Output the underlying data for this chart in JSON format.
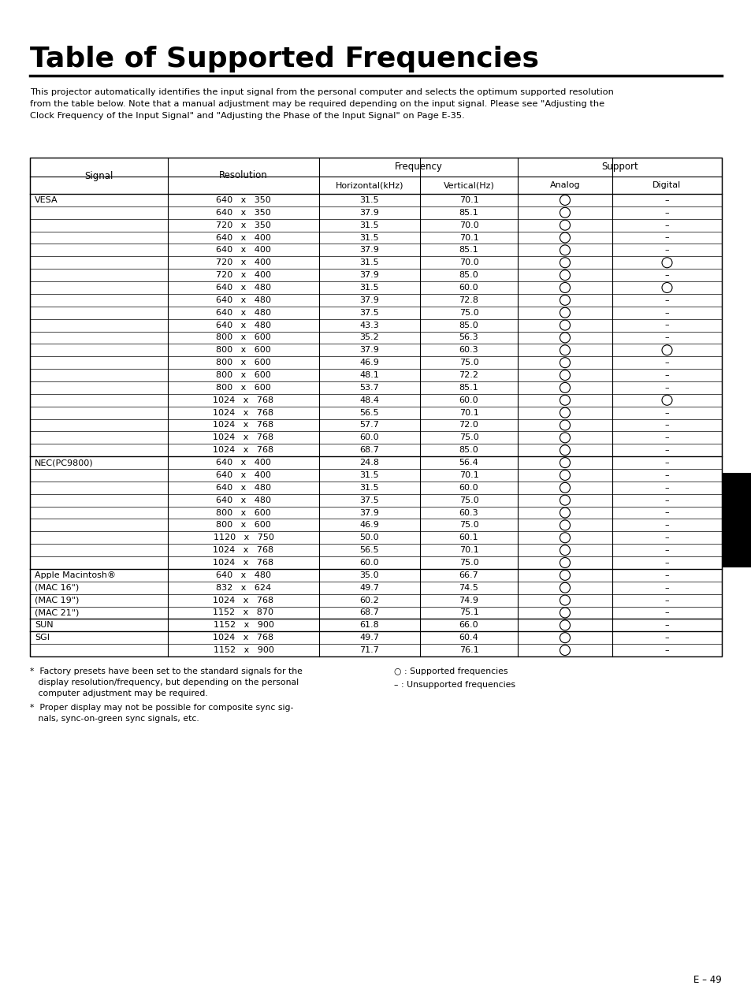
{
  "title": "Table of Supported Frequencies",
  "intro_text": "This projector automatically identifies the input signal from the personal computer and selects the optimum supported resolution\nfrom the table below. Note that a manual adjustment may be required depending on the input signal. Please see \"Adjusting the\nClock Frequency of the Input Signal\" and \"Adjusting the Phase of the Input Signal\" on Page E-35.",
  "rows": [
    [
      "VESA",
      "640   x   350",
      "31.5",
      "70.1",
      "O",
      "-"
    ],
    [
      "",
      "640   x   350",
      "37.9",
      "85.1",
      "O",
      "-"
    ],
    [
      "",
      "720   x   350",
      "31.5",
      "70.0",
      "O",
      "-"
    ],
    [
      "",
      "640   x   400",
      "31.5",
      "70.1",
      "O",
      "-"
    ],
    [
      "",
      "640   x   400",
      "37.9",
      "85.1",
      "O",
      "-"
    ],
    [
      "",
      "720   x   400",
      "31.5",
      "70.0",
      "O",
      "O"
    ],
    [
      "",
      "720   x   400",
      "37.9",
      "85.0",
      "O",
      "-"
    ],
    [
      "",
      "640   x   480",
      "31.5",
      "60.0",
      "O",
      "O"
    ],
    [
      "",
      "640   x   480",
      "37.9",
      "72.8",
      "O",
      "-"
    ],
    [
      "",
      "640   x   480",
      "37.5",
      "75.0",
      "O",
      "-"
    ],
    [
      "",
      "640   x   480",
      "43.3",
      "85.0",
      "O",
      "-"
    ],
    [
      "",
      "800   x   600",
      "35.2",
      "56.3",
      "O",
      "-"
    ],
    [
      "",
      "800   x   600",
      "37.9",
      "60.3",
      "O",
      "O"
    ],
    [
      "",
      "800   x   600",
      "46.9",
      "75.0",
      "O",
      "-"
    ],
    [
      "",
      "800   x   600",
      "48.1",
      "72.2",
      "O",
      "-"
    ],
    [
      "",
      "800   x   600",
      "53.7",
      "85.1",
      "O",
      "-"
    ],
    [
      "",
      "1024   x   768",
      "48.4",
      "60.0",
      "O",
      "O"
    ],
    [
      "",
      "1024   x   768",
      "56.5",
      "70.1",
      "O",
      "-"
    ],
    [
      "",
      "1024   x   768",
      "57.7",
      "72.0",
      "O",
      "-"
    ],
    [
      "",
      "1024   x   768",
      "60.0",
      "75.0",
      "O",
      "-"
    ],
    [
      "",
      "1024   x   768",
      "68.7",
      "85.0",
      "O",
      "-"
    ],
    [
      "NEC(PC9800)",
      "640   x   400",
      "24.8",
      "56.4",
      "O",
      "-"
    ],
    [
      "",
      "640   x   400",
      "31.5",
      "70.1",
      "O",
      "-"
    ],
    [
      "",
      "640   x   480",
      "31.5",
      "60.0",
      "O",
      "-"
    ],
    [
      "",
      "640   x   480",
      "37.5",
      "75.0",
      "O",
      "-"
    ],
    [
      "",
      "800   x   600",
      "37.9",
      "60.3",
      "O",
      "-"
    ],
    [
      "",
      "800   x   600",
      "46.9",
      "75.0",
      "O",
      "-"
    ],
    [
      "",
      "1120   x   750",
      "50.0",
      "60.1",
      "O",
      "-"
    ],
    [
      "",
      "1024   x   768",
      "56.5",
      "70.1",
      "O",
      "-"
    ],
    [
      "",
      "1024   x   768",
      "60.0",
      "75.0",
      "O",
      "-"
    ],
    [
      "Apple Macintosh®",
      "640   x   480",
      "35.0",
      "66.7",
      "O",
      "-"
    ],
    [
      "(MAC 16\")",
      "832   x   624",
      "49.7",
      "74.5",
      "O",
      "-"
    ],
    [
      "(MAC 19\")",
      "1024   x   768",
      "60.2",
      "74.9",
      "O",
      "-"
    ],
    [
      "(MAC 21\")",
      "1152   x   870",
      "68.7",
      "75.1",
      "O",
      "-"
    ],
    [
      "SUN",
      "1152   x   900",
      "61.8",
      "66.0",
      "O",
      "-"
    ],
    [
      "SGI",
      "1024   x   768",
      "49.7",
      "60.4",
      "O",
      "-"
    ],
    [
      "",
      "1152   x   900",
      "71.7",
      "76.1",
      "O",
      "-"
    ]
  ],
  "group_separators": [
    21,
    30,
    34,
    35
  ],
  "page_number": "E – 49",
  "background_color": "#ffffff",
  "text_color": "#000000"
}
